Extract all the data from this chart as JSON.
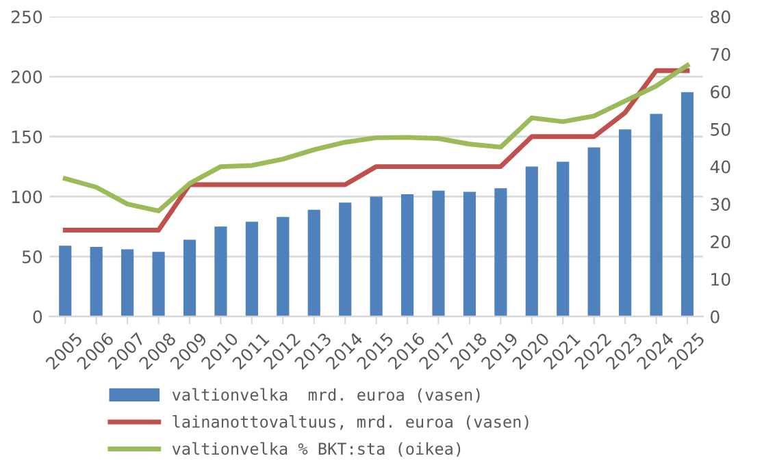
{
  "chart_data": {
    "type": "bar",
    "categories": [
      "2005",
      "2006",
      "2007",
      "2008",
      "2009",
      "2010",
      "2011",
      "2012",
      "2013",
      "2014",
      "2015",
      "2016",
      "2017",
      "2018",
      "2019",
      "2020",
      "2021",
      "2022",
      "2023",
      "2024",
      "2025"
    ],
    "series": [
      {
        "name": "valtionvelka  mrd. euroa (vasen)",
        "color": "#4f81bd",
        "values": [
          59,
          58,
          56,
          54,
          64,
          75,
          79,
          83,
          89,
          95,
          100,
          102,
          105,
          104,
          107,
          125,
          129,
          141,
          156,
          169,
          187
        ]
      },
      {
        "name": "lainanottovaltuus, mrd. euroa (vasen)",
        "type": "line",
        "color": "#c0504d",
        "values": [
          72,
          72,
          72,
          72,
          110,
          110,
          110,
          110,
          110,
          110,
          125,
          125,
          125,
          125,
          125,
          150,
          150,
          150,
          170,
          205,
          205
        ]
      },
      {
        "name": "valtionvelka % BKT:sta (oikea)",
        "type": "line",
        "axis": "y2",
        "color": "#9bbb59",
        "values": [
          36.8,
          34.5,
          30,
          28.2,
          35.5,
          40,
          40.3,
          42,
          44.5,
          46.5,
          47.7,
          47.8,
          47.5,
          46,
          45.2,
          53,
          52,
          53.5,
          57.5,
          61.5,
          67
        ]
      }
    ],
    "ylim": [
      0,
      250
    ],
    "yticks": [
      0,
      50,
      100,
      150,
      200,
      250
    ],
    "y2lim": [
      0,
      80
    ],
    "y2ticks": [
      0,
      10,
      20,
      30,
      40,
      50,
      60,
      70,
      80
    ],
    "grid": "y",
    "legend": "bottom",
    "marker": "none",
    "line_style": "solid"
  }
}
